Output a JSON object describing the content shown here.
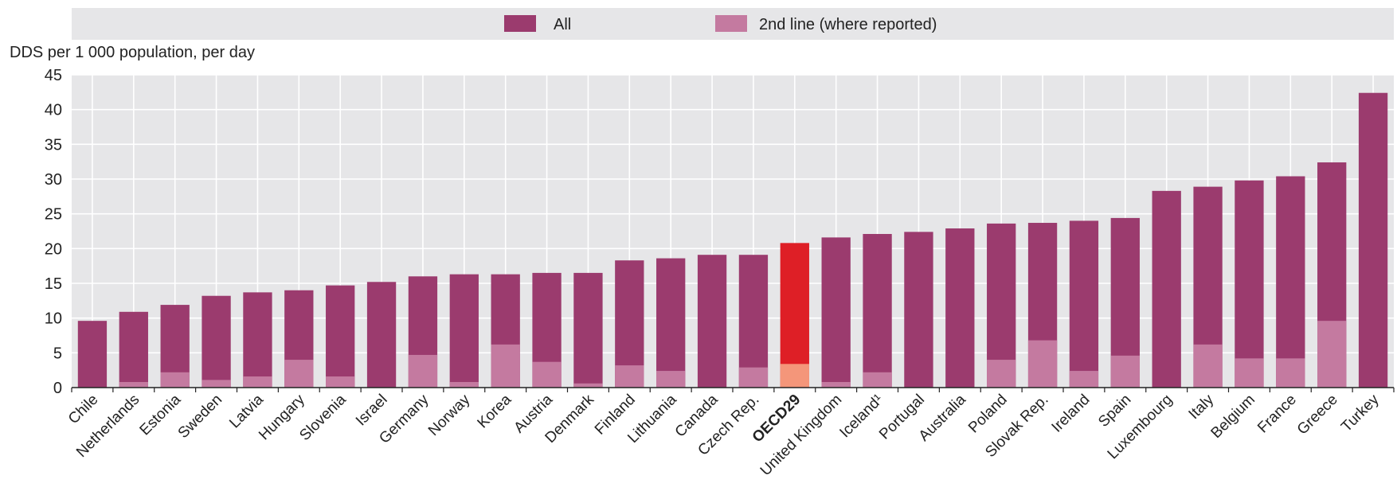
{
  "chart_data": {
    "type": "bar",
    "ylabel": "DDS per 1 000 population, per day",
    "ylim": [
      0,
      45
    ],
    "yticks": [
      0,
      5,
      10,
      15,
      20,
      25,
      30,
      35,
      40,
      45
    ],
    "grid": true,
    "legend_position": "top",
    "categories": [
      "Chile",
      "Netherlands",
      "Estonia",
      "Sweden",
      "Latvia",
      "Hungary",
      "Slovenia",
      "Israel",
      "Germany",
      "Norway",
      "Korea",
      "Austria",
      "Denmark",
      "Finland",
      "Lithuania",
      "Canada",
      "Czech Rep.",
      "OECD29",
      "United Kingdom",
      "Iceland¹",
      "Portugal",
      "Australia",
      "Poland",
      "Slovak Rep.",
      "Ireland",
      "Spain",
      "Luxembourg",
      "Italy",
      "Belgium",
      "France",
      "Greece",
      "Turkey"
    ],
    "highlight_category": "OECD29",
    "series": [
      {
        "name": "All",
        "values": [
          9.6,
          10.9,
          11.9,
          13.2,
          13.7,
          14.0,
          14.7,
          15.2,
          16.0,
          16.3,
          16.3,
          16.5,
          16.5,
          18.3,
          18.6,
          19.1,
          19.1,
          20.8,
          21.6,
          22.1,
          22.4,
          22.9,
          23.6,
          23.7,
          24.0,
          24.4,
          28.3,
          28.9,
          29.8,
          30.4,
          32.4,
          42.4
        ]
      },
      {
        "name": "2nd line (where reported)",
        "values": [
          0,
          0.8,
          2.2,
          1.1,
          1.6,
          4.0,
          1.6,
          0,
          4.7,
          0.8,
          6.2,
          3.7,
          0.6,
          3.2,
          2.4,
          0,
          2.9,
          3.4,
          0.8,
          2.2,
          0,
          0,
          4.0,
          6.8,
          2.4,
          4.6,
          0,
          6.2,
          4.2,
          4.2,
          9.6,
          0
        ]
      }
    ],
    "colors": {
      "all": "#9b3b6e",
      "second_line": "#c47aa0",
      "oecd_all": "#de1f26",
      "oecd_second": "#f4967a",
      "legend_band": "#e6e6e8",
      "plot_bg": "#e6e6e8",
      "grid": "#ffffff"
    }
  }
}
